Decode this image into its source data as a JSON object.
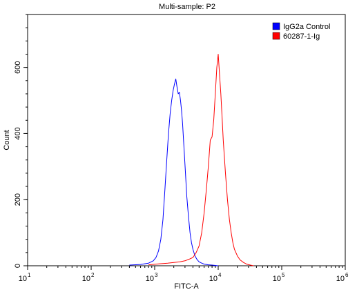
{
  "chart_data": {
    "type": "line",
    "title": "Multi-sample: P2",
    "xlabel": "FITC-A",
    "ylabel": "Count",
    "x_scale": "log",
    "xlim": [
      10,
      1000000
    ],
    "ylim": [
      0,
      760
    ],
    "x_ticks": [
      {
        "value": 10,
        "base": "10",
        "exp": "1"
      },
      {
        "value": 100,
        "base": "10",
        "exp": "2"
      },
      {
        "value": 1000,
        "base": "10",
        "exp": "3"
      },
      {
        "value": 10000,
        "base": "10",
        "exp": "4"
      },
      {
        "value": 100000,
        "base": "10",
        "exp": "5"
      },
      {
        "value": 1000000,
        "base": "10",
        "exp": "6"
      }
    ],
    "y_ticks": [
      0,
      200,
      400,
      600
    ],
    "grid": false,
    "legend_position": "top-right",
    "series": [
      {
        "name": "IgG2a Control",
        "color": "#0000ff",
        "x": [
          400,
          600,
          800,
          950,
          1050,
          1150,
          1250,
          1350,
          1450,
          1550,
          1650,
          1750,
          1850,
          1950,
          2050,
          2150,
          2250,
          2350,
          2450,
          2550,
          2650,
          2750,
          2850,
          2950,
          3050,
          3200,
          3400,
          3600,
          3800,
          4000,
          4300,
          4600,
          5000,
          5500,
          6000,
          6500,
          7000,
          8000,
          9000,
          10000
        ],
        "y": [
          2,
          4,
          8,
          15,
          25,
          45,
          80,
          140,
          230,
          320,
          400,
          460,
          500,
          530,
          550,
          565,
          540,
          520,
          525,
          500,
          470,
          430,
          380,
          330,
          280,
          210,
          150,
          100,
          70,
          50,
          30,
          20,
          12,
          8,
          5,
          4,
          3,
          2,
          1,
          0
        ]
      },
      {
        "name": "60287-1-Ig",
        "color": "#ff0000",
        "x": [
          800,
          1200,
          1600,
          2000,
          2500,
          3000,
          3500,
          4000,
          4500,
          5000,
          5500,
          6000,
          6500,
          7000,
          7500,
          8000,
          8500,
          9000,
          9500,
          10000,
          10500,
          11000,
          11500,
          12000,
          13000,
          14000,
          15000,
          16000,
          17000,
          18000,
          20000,
          22000,
          25000,
          28000,
          32000,
          36000
        ],
        "y": [
          3,
          6,
          8,
          10,
          12,
          15,
          20,
          25,
          40,
          60,
          100,
          160,
          230,
          300,
          380,
          390,
          440,
          520,
          600,
          640,
          580,
          520,
          450,
          380,
          280,
          200,
          140,
          100,
          70,
          50,
          30,
          18,
          10,
          5,
          2,
          0
        ]
      }
    ]
  }
}
